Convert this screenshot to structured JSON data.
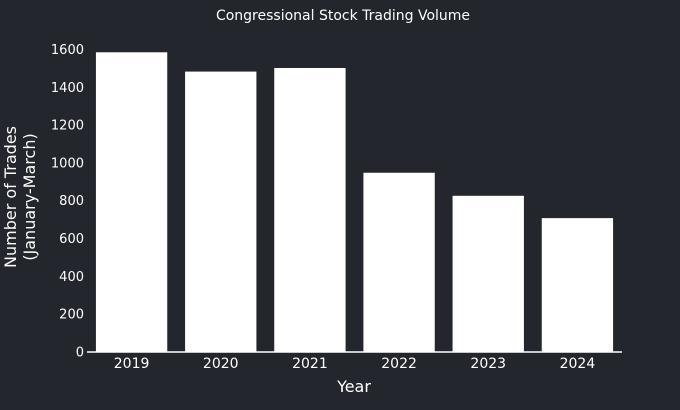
{
  "chart_data": {
    "type": "bar",
    "title": "Congressional Stock Trading Volume",
    "xlabel": "Year",
    "ylabel_lines": [
      "Number of Trades",
      "(January-March)"
    ],
    "categories": [
      "2019",
      "2020",
      "2021",
      "2022",
      "2023",
      "2024"
    ],
    "values": [
      1585,
      1483,
      1502,
      948,
      826,
      708
    ],
    "ylim": [
      0,
      1650
    ],
    "yticks": [
      0,
      200,
      400,
      600,
      800,
      1000,
      1200,
      1400,
      1600
    ],
    "grid": false,
    "legend": "none",
    "colors": {
      "background": "#23262c",
      "bar": "#ffffff",
      "text": "#ffffff"
    }
  }
}
